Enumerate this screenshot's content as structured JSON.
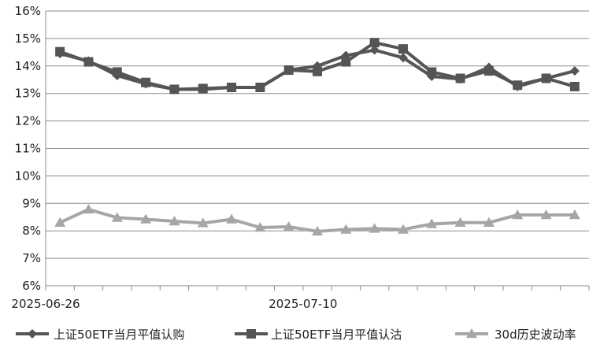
{
  "chart_data": {
    "type": "line",
    "title": "",
    "xlabel": "",
    "ylabel": "",
    "x_tick_labels": [
      "2025-06-26",
      "2025-07-10"
    ],
    "x_tick_indices": [
      0,
      9
    ],
    "y_tick_labels": [
      "6%",
      "7%",
      "8%",
      "9%",
      "10%",
      "11%",
      "12%",
      "13%",
      "14%",
      "15%",
      "16%"
    ],
    "ylim": [
      6,
      16
    ],
    "grid": "horizontal",
    "legend": "bottom",
    "series": [
      {
        "name": "上证50ETF当月平值认购",
        "marker": "diamond",
        "color": "#555555",
        "values": [
          14.45,
          14.18,
          13.65,
          13.35,
          13.15,
          13.15,
          13.22,
          13.22,
          13.85,
          14.0,
          14.38,
          14.58,
          14.3,
          13.62,
          13.52,
          13.95,
          13.25,
          13.55,
          13.82
        ]
      },
      {
        "name": "上证50ETF当月平值认沽",
        "marker": "square",
        "color": "#555555",
        "values": [
          14.52,
          14.15,
          13.78,
          13.4,
          13.15,
          13.18,
          13.22,
          13.22,
          13.85,
          13.8,
          14.15,
          14.85,
          14.62,
          13.78,
          13.55,
          13.82,
          13.3,
          13.55,
          13.25
        ]
      },
      {
        "name": "30d历史波动率",
        "marker": "triangle",
        "color": "#a6a6a6",
        "values": [
          8.3,
          8.78,
          8.48,
          8.42,
          8.35,
          8.28,
          8.42,
          8.12,
          8.15,
          7.98,
          8.05,
          8.08,
          8.05,
          8.25,
          8.3,
          8.3,
          8.58,
          8.58,
          8.58
        ]
      }
    ]
  }
}
